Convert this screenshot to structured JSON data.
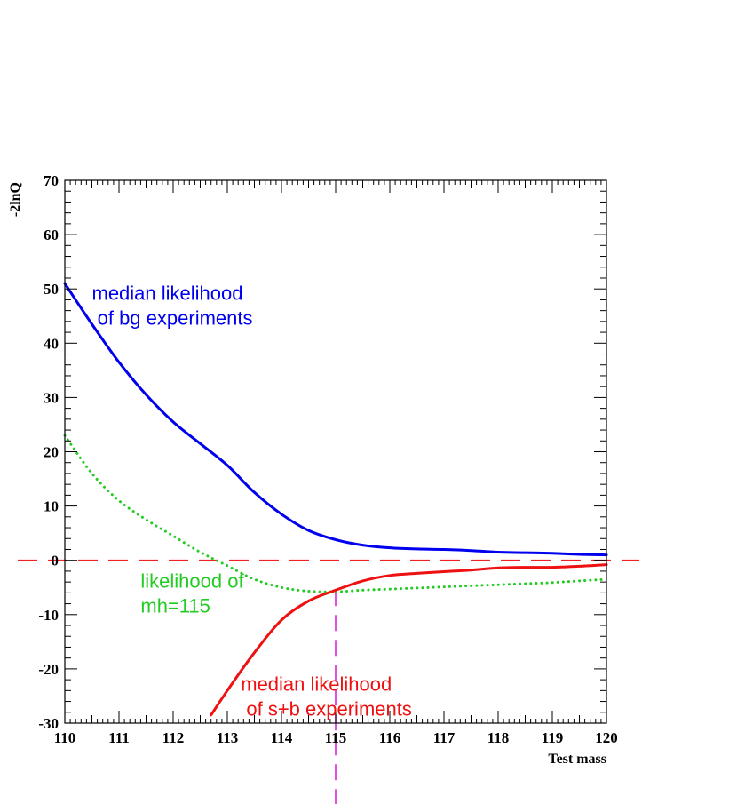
{
  "chart_data": {
    "type": "line",
    "xlabel": "Test mass",
    "ylabel": "-2lnQ",
    "xlim": [
      110,
      120
    ],
    "ylim": [
      -30,
      70
    ],
    "grid": false,
    "x_ticks": [
      110,
      111,
      112,
      113,
      114,
      115,
      116,
      117,
      118,
      119,
      120
    ],
    "y_ticks": [
      -30,
      -20,
      -10,
      0,
      10,
      20,
      30,
      40,
      50,
      60,
      70
    ],
    "series": [
      {
        "name": "median likelihood of bg experiments",
        "color": "#0000ee",
        "style": "solid",
        "x": [
          110,
          110.5,
          111,
          111.5,
          112,
          112.5,
          113,
          113.5,
          114,
          114.5,
          115,
          115.5,
          116,
          116.5,
          117,
          117.5,
          118,
          118.5,
          119,
          119.5,
          120
        ],
        "y": [
          51,
          43.5,
          36.5,
          30.5,
          25.5,
          21.5,
          17.5,
          12.5,
          8.5,
          5.5,
          3.8,
          2.8,
          2.3,
          2.1,
          2.0,
          1.8,
          1.5,
          1.4,
          1.3,
          1.1,
          1.0
        ]
      },
      {
        "name": "likelihood of mh=115",
        "color": "#22cc22",
        "style": "dotted",
        "x": [
          110,
          110.5,
          111,
          111.5,
          112,
          112.5,
          113,
          113.5,
          114,
          114.5,
          115,
          115.5,
          116,
          116.5,
          117,
          117.5,
          118,
          118.5,
          119,
          119.5,
          120
        ],
        "y": [
          23,
          16,
          11,
          7.5,
          4.5,
          1.5,
          -1,
          -3.5,
          -5,
          -5.7,
          -5.8,
          -5.5,
          -5.3,
          -5.1,
          -4.9,
          -4.7,
          -4.5,
          -4.3,
          -4.1,
          -3.8,
          -3.5
        ]
      },
      {
        "name": "median likelihood of s+b experiments",
        "color": "#ee1111",
        "style": "solid",
        "x": [
          112.7,
          113,
          113.5,
          114,
          114.5,
          115,
          115.5,
          116,
          116.5,
          117,
          117.5,
          118,
          118.5,
          119,
          119.5,
          120
        ],
        "y": [
          -28.5,
          -24,
          -17,
          -11,
          -7.5,
          -5.5,
          -3.8,
          -2.8,
          -2.4,
          -2.1,
          -1.8,
          -1.4,
          -1.3,
          -1.3,
          -1.1,
          -0.8
        ]
      }
    ],
    "reference_lines": [
      {
        "orientation": "horizontal",
        "value": 0,
        "color": "#ee2222",
        "style": "dashed"
      },
      {
        "orientation": "vertical",
        "value": 115,
        "color": "#dd22dd",
        "style": "dashed"
      }
    ],
    "annotations": [
      {
        "lines": [
          "median likelihood",
          " of bg experiments"
        ],
        "color": "#0000ee",
        "x": 110.5,
        "y": 48
      },
      {
        "lines": [
          "likelihood of",
          "mh=115"
        ],
        "color": "#22cc22",
        "x": 111.4,
        "y": -5
      },
      {
        "lines": [
          "median likelihood",
          " of s+b experiments"
        ],
        "color": "#ee1111",
        "x": 113.25,
        "y": -24
      }
    ]
  }
}
